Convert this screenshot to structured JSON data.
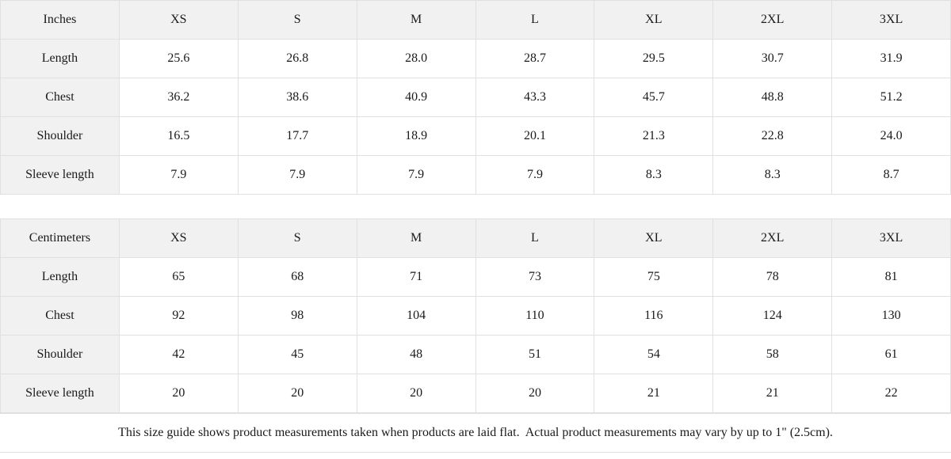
{
  "colors": {
    "header_background": "#f1f1f1",
    "cell_background": "#ffffff",
    "border": "#e0e0e0",
    "text": "#1a1a1a"
  },
  "tables": [
    {
      "unit_label": "Inches",
      "sizes": [
        "XS",
        "S",
        "M",
        "L",
        "XL",
        "2XL",
        "3XL"
      ],
      "rows": [
        {
          "label": "Length",
          "values": [
            "25.6",
            "26.8",
            "28.0",
            "28.7",
            "29.5",
            "30.7",
            "31.9"
          ]
        },
        {
          "label": "Chest",
          "values": [
            "36.2",
            "38.6",
            "40.9",
            "43.3",
            "45.7",
            "48.8",
            "51.2"
          ]
        },
        {
          "label": "Shoulder",
          "values": [
            "16.5",
            "17.7",
            "18.9",
            "20.1",
            "21.3",
            "22.8",
            "24.0"
          ]
        },
        {
          "label": "Sleeve length",
          "values": [
            "7.9",
            "7.9",
            "7.9",
            "7.9",
            "8.3",
            "8.3",
            "8.7"
          ]
        }
      ]
    },
    {
      "unit_label": "Centimeters",
      "sizes": [
        "XS",
        "S",
        "M",
        "L",
        "XL",
        "2XL",
        "3XL"
      ],
      "rows": [
        {
          "label": "Length",
          "values": [
            "65",
            "68",
            "71",
            "73",
            "75",
            "78",
            "81"
          ]
        },
        {
          "label": "Chest",
          "values": [
            "92",
            "98",
            "104",
            "110",
            "116",
            "124",
            "130"
          ]
        },
        {
          "label": "Shoulder",
          "values": [
            "42",
            "45",
            "48",
            "51",
            "54",
            "58",
            "61"
          ]
        },
        {
          "label": "Sleeve length",
          "values": [
            "20",
            "20",
            "20",
            "20",
            "21",
            "21",
            "22"
          ]
        }
      ]
    }
  ],
  "footnote": "This size guide shows product measurements taken when products are laid flat.  Actual product measurements may vary by up to 1\" (2.5cm)."
}
